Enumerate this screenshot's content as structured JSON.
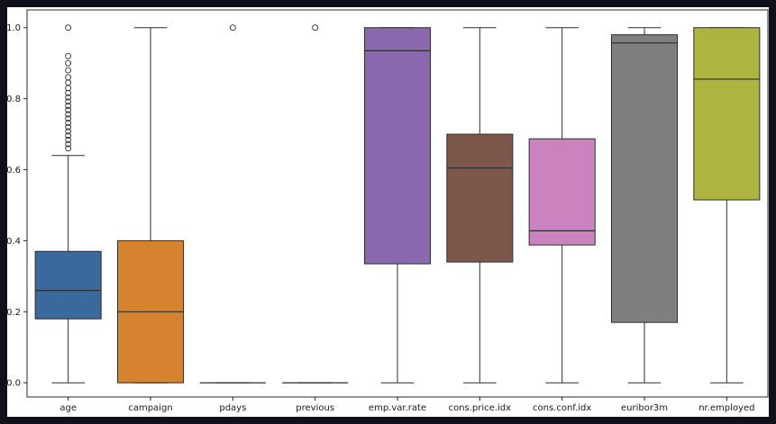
{
  "window": {
    "background": "#10101a",
    "figure_background": "#ffffff"
  },
  "chart_data": {
    "type": "boxplot",
    "title": "",
    "xlabel": "",
    "ylabel": "",
    "grid": false,
    "legend": "none",
    "ylim": [
      0.0,
      1.0
    ],
    "axis_draw_range": [
      -0.04,
      1.05
    ],
    "ytick_values": [
      0.0,
      0.2,
      0.4,
      0.6,
      0.8,
      1.0
    ],
    "ytick_labels": [
      "0.0",
      "0.2",
      "0.4",
      "0.6",
      "0.8",
      "1.0"
    ],
    "line_color": "#2e2e2e",
    "spine_color": "#262626",
    "text_color": "#1a1a1a",
    "categories": [
      "age",
      "campaign",
      "pdays",
      "previous",
      "emp.var.rate",
      "cons.price.idx",
      "cons.conf.idx",
      "euribor3m",
      "nr.employed"
    ],
    "series": [
      {
        "name": "age",
        "color": "#3b699c",
        "whisker_low": 0.0,
        "q1": 0.18,
        "median": 0.26,
        "q3": 0.37,
        "whisker_high": 0.64,
        "outliers": [
          0.66,
          0.672,
          0.684,
          0.696,
          0.708,
          0.72,
          0.732,
          0.744,
          0.756,
          0.768,
          0.78,
          0.792,
          0.804,
          0.816,
          0.83,
          0.845,
          0.86,
          0.88,
          0.9,
          0.92,
          1.0
        ]
      },
      {
        "name": "campaign",
        "color": "#d6832f",
        "whisker_low": 0.0,
        "q1": 0.0,
        "median": 0.2,
        "q3": 0.4,
        "whisker_high": 1.0,
        "outliers": []
      },
      {
        "name": "pdays",
        "color": "#4a9a48",
        "whisker_low": 0.0,
        "q1": 0.0,
        "median": 0.0,
        "q3": 0.0,
        "whisker_high": 0.0,
        "outliers": [
          1.0
        ]
      },
      {
        "name": "previous",
        "color": "#bf4a4e",
        "whisker_low": 0.0,
        "q1": 0.0,
        "median": 0.0,
        "q3": 0.0,
        "whisker_high": 0.0,
        "outliers": [
          1.0
        ]
      },
      {
        "name": "emp.var.rate",
        "color": "#8a68ad",
        "whisker_low": 0.0,
        "q1": 0.335,
        "median": 0.935,
        "q3": 1.0,
        "whisker_high": 1.0,
        "outliers": []
      },
      {
        "name": "cons.price.idx",
        "color": "#7d564c",
        "whisker_low": 0.0,
        "q1": 0.34,
        "median": 0.605,
        "q3": 0.7,
        "whisker_high": 1.0,
        "outliers": []
      },
      {
        "name": "cons.conf.idx",
        "color": "#ca83bf",
        "whisker_low": 0.0,
        "q1": 0.388,
        "median": 0.428,
        "q3": 0.687,
        "whisker_high": 1.0,
        "outliers": []
      },
      {
        "name": "euribor3m",
        "color": "#7f7f7f",
        "whisker_low": 0.0,
        "q1": 0.17,
        "median": 0.957,
        "q3": 0.98,
        "whisker_high": 1.0,
        "outliers": []
      },
      {
        "name": "nr.employed",
        "color": "#aeb440",
        "whisker_low": 0.0,
        "q1": 0.515,
        "median": 0.855,
        "q3": 1.0,
        "whisker_high": 1.0,
        "outliers": []
      }
    ]
  }
}
